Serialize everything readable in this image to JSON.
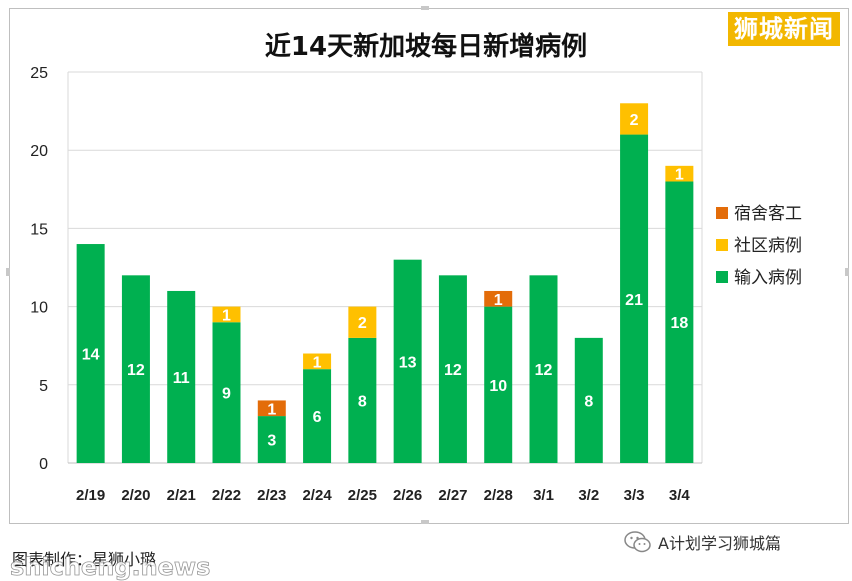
{
  "brand_label": "狮城新闻",
  "footer": {
    "credit": "图表制作：星狮小璐",
    "watermark": "shicheng.news",
    "wechat_account": "A计划学习狮城篇"
  },
  "chart_data": {
    "type": "bar",
    "stacked": true,
    "title": "近14天新加坡每日新增病例",
    "categories": [
      "2/19",
      "2/20",
      "2/21",
      "2/22",
      "2/23",
      "2/24",
      "2/25",
      "2/26",
      "2/27",
      "2/28",
      "3/1",
      "3/2",
      "3/3",
      "3/4"
    ],
    "series": [
      {
        "name": "输入病例",
        "color": "#00b050",
        "values": [
          14,
          12,
          11,
          9,
          3,
          6,
          8,
          13,
          12,
          10,
          12,
          8,
          21,
          18
        ]
      },
      {
        "name": "社区病例",
        "color": "#ffc000",
        "values": [
          0,
          0,
          0,
          1,
          0,
          1,
          2,
          0,
          0,
          0,
          0,
          0,
          2,
          1
        ]
      },
      {
        "name": "宿舍客工",
        "color": "#e36c09",
        "values": [
          0,
          0,
          0,
          0,
          1,
          0,
          0,
          0,
          0,
          1,
          0,
          0,
          0,
          0
        ]
      }
    ],
    "legend_order": [
      "宿舍客工",
      "社区病例",
      "输入病例"
    ],
    "legend_position": "right",
    "ylim": [
      0,
      25
    ],
    "yticks": [
      0,
      5,
      10,
      15,
      20,
      25
    ],
    "grid": true
  }
}
